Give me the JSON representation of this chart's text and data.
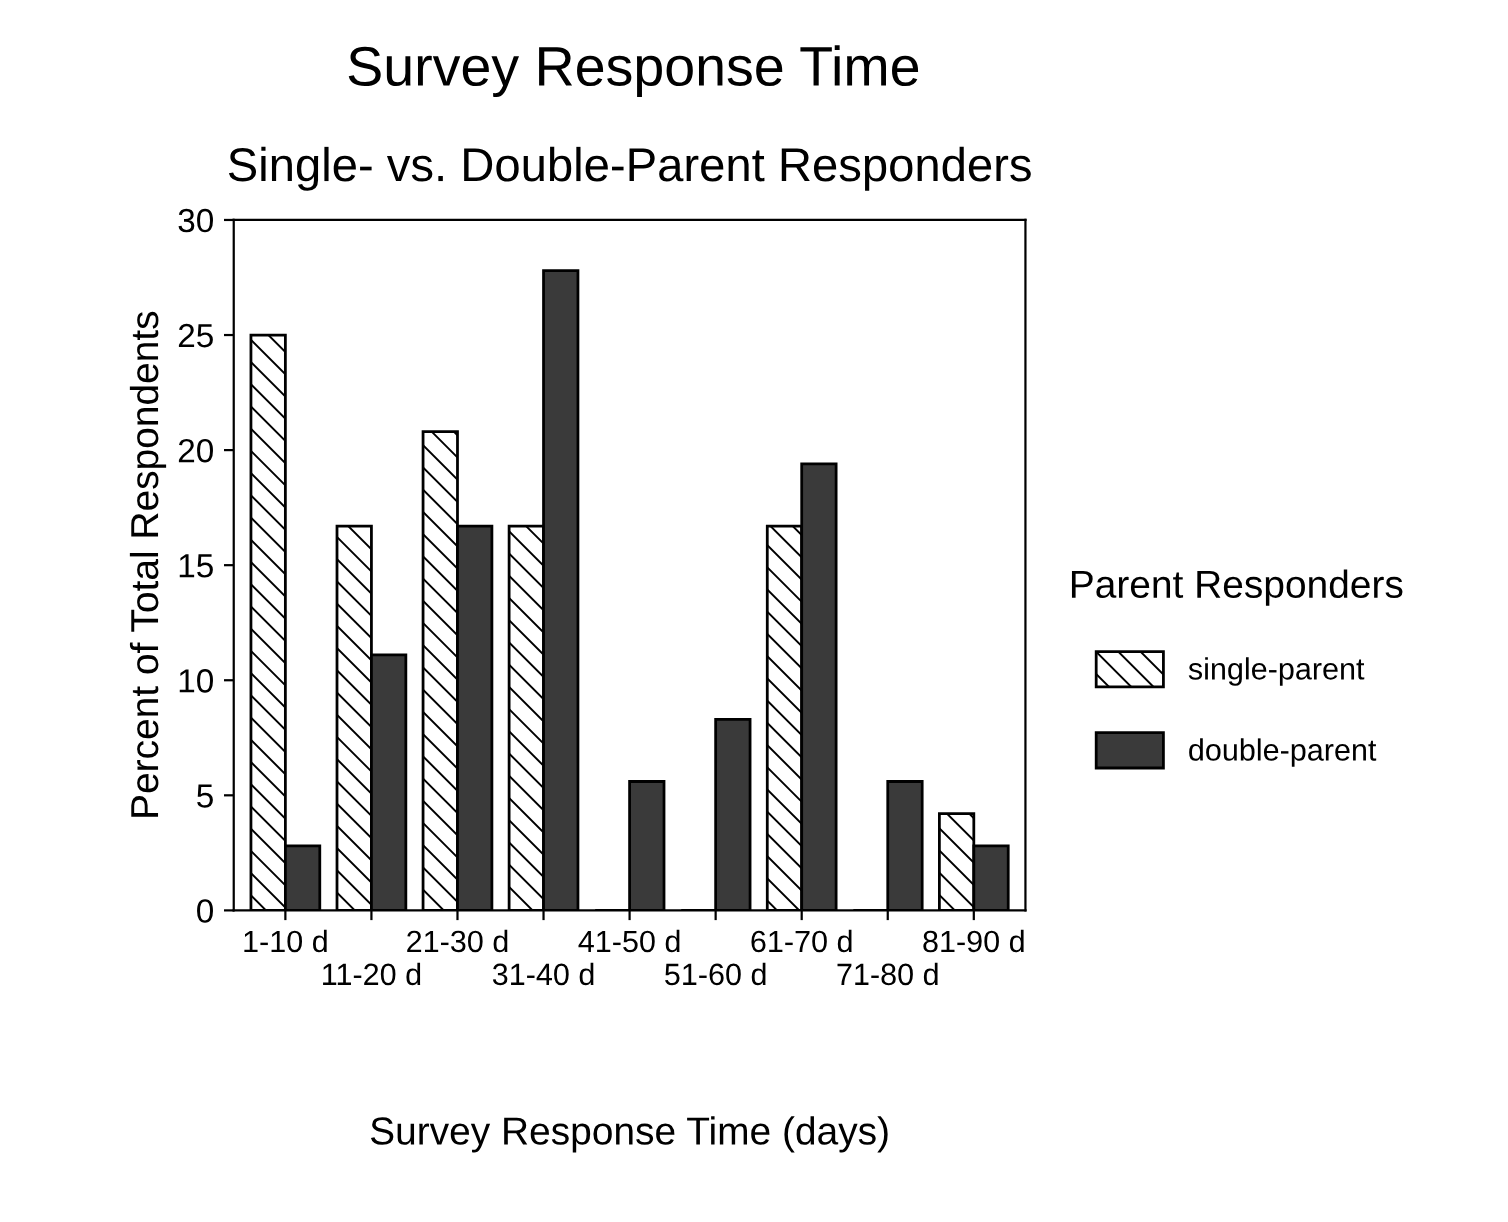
{
  "chart_data": {
    "type": "bar",
    "title": "Survey Response Time",
    "subtitle": "Single- vs. Double-Parent Responders",
    "xlabel": "Survey Response Time (days)",
    "ylabel": "Percent of Total Respondents",
    "legend_title": "Parent Responders",
    "categories": [
      "1-10 d",
      "11-20 d",
      "21-30 d",
      "31-40 d",
      "41-50 d",
      "51-60 d",
      "61-70 d",
      "71-80 d",
      "81-90 d"
    ],
    "series": [
      {
        "name": "single-parent",
        "color": "#000000",
        "values": [
          25,
          16.7,
          20.8,
          16.7,
          0,
          0,
          16.7,
          0,
          4.2
        ]
      },
      {
        "name": "double-parent",
        "color": "#3a3a3a",
        "values": [
          2.8,
          11.1,
          16.7,
          27.8,
          5.6,
          8.3,
          19.4,
          5.6,
          2.8
        ]
      }
    ],
    "ylim": [
      0,
      30
    ],
    "yticks": [
      0,
      5,
      10,
      15,
      20,
      25,
      30
    ],
    "grid": false,
    "legend": "right"
  }
}
